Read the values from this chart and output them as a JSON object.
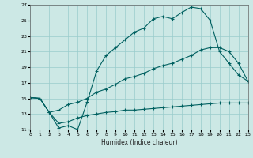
{
  "xlabel": "Humidex (Indice chaleur)",
  "bg_color": "#cce8e5",
  "grid_color": "#99cccc",
  "line_color": "#006060",
  "xlim": [
    0,
    23
  ],
  "ylim": [
    11,
    27
  ],
  "xticks": [
    0,
    1,
    2,
    3,
    4,
    5,
    6,
    7,
    8,
    9,
    10,
    11,
    12,
    13,
    14,
    15,
    16,
    17,
    18,
    19,
    20,
    21,
    22,
    23
  ],
  "yticks": [
    11,
    13,
    15,
    17,
    19,
    21,
    23,
    25,
    27
  ],
  "curve1_x": [
    0,
    1,
    2,
    3,
    4,
    5,
    6,
    7,
    8,
    9,
    10,
    11,
    12,
    13,
    14,
    15,
    16,
    17,
    18,
    19,
    20,
    21,
    22,
    23
  ],
  "curve1_y": [
    15.1,
    15.0,
    13.2,
    11.2,
    11.5,
    11.0,
    14.5,
    18.5,
    20.5,
    21.5,
    22.5,
    23.5,
    24.0,
    25.2,
    25.5,
    25.2,
    26.0,
    26.7,
    26.5,
    25.0,
    21.0,
    19.5,
    18.0,
    17.2
  ],
  "curve2_x": [
    0,
    1,
    2,
    3,
    4,
    5,
    6,
    7,
    8,
    9,
    10,
    11,
    12,
    13,
    14,
    15,
    16,
    17,
    18,
    19,
    20,
    21,
    22,
    23
  ],
  "curve2_y": [
    15.1,
    15.0,
    13.2,
    13.5,
    14.2,
    14.5,
    15.0,
    15.8,
    16.2,
    16.8,
    17.5,
    17.8,
    18.2,
    18.8,
    19.2,
    19.5,
    20.0,
    20.5,
    21.2,
    21.5,
    21.5,
    21.0,
    19.5,
    17.2
  ],
  "curve3_x": [
    0,
    1,
    2,
    3,
    4,
    5,
    6,
    7,
    8,
    9,
    10,
    11,
    12,
    13,
    14,
    15,
    16,
    17,
    18,
    19,
    20,
    21,
    22,
    23
  ],
  "curve3_y": [
    15.1,
    15.0,
    13.2,
    11.8,
    12.0,
    12.5,
    12.8,
    13.0,
    13.2,
    13.3,
    13.5,
    13.5,
    13.6,
    13.7,
    13.8,
    13.9,
    14.0,
    14.1,
    14.2,
    14.3,
    14.4,
    14.4,
    14.4,
    14.4
  ]
}
